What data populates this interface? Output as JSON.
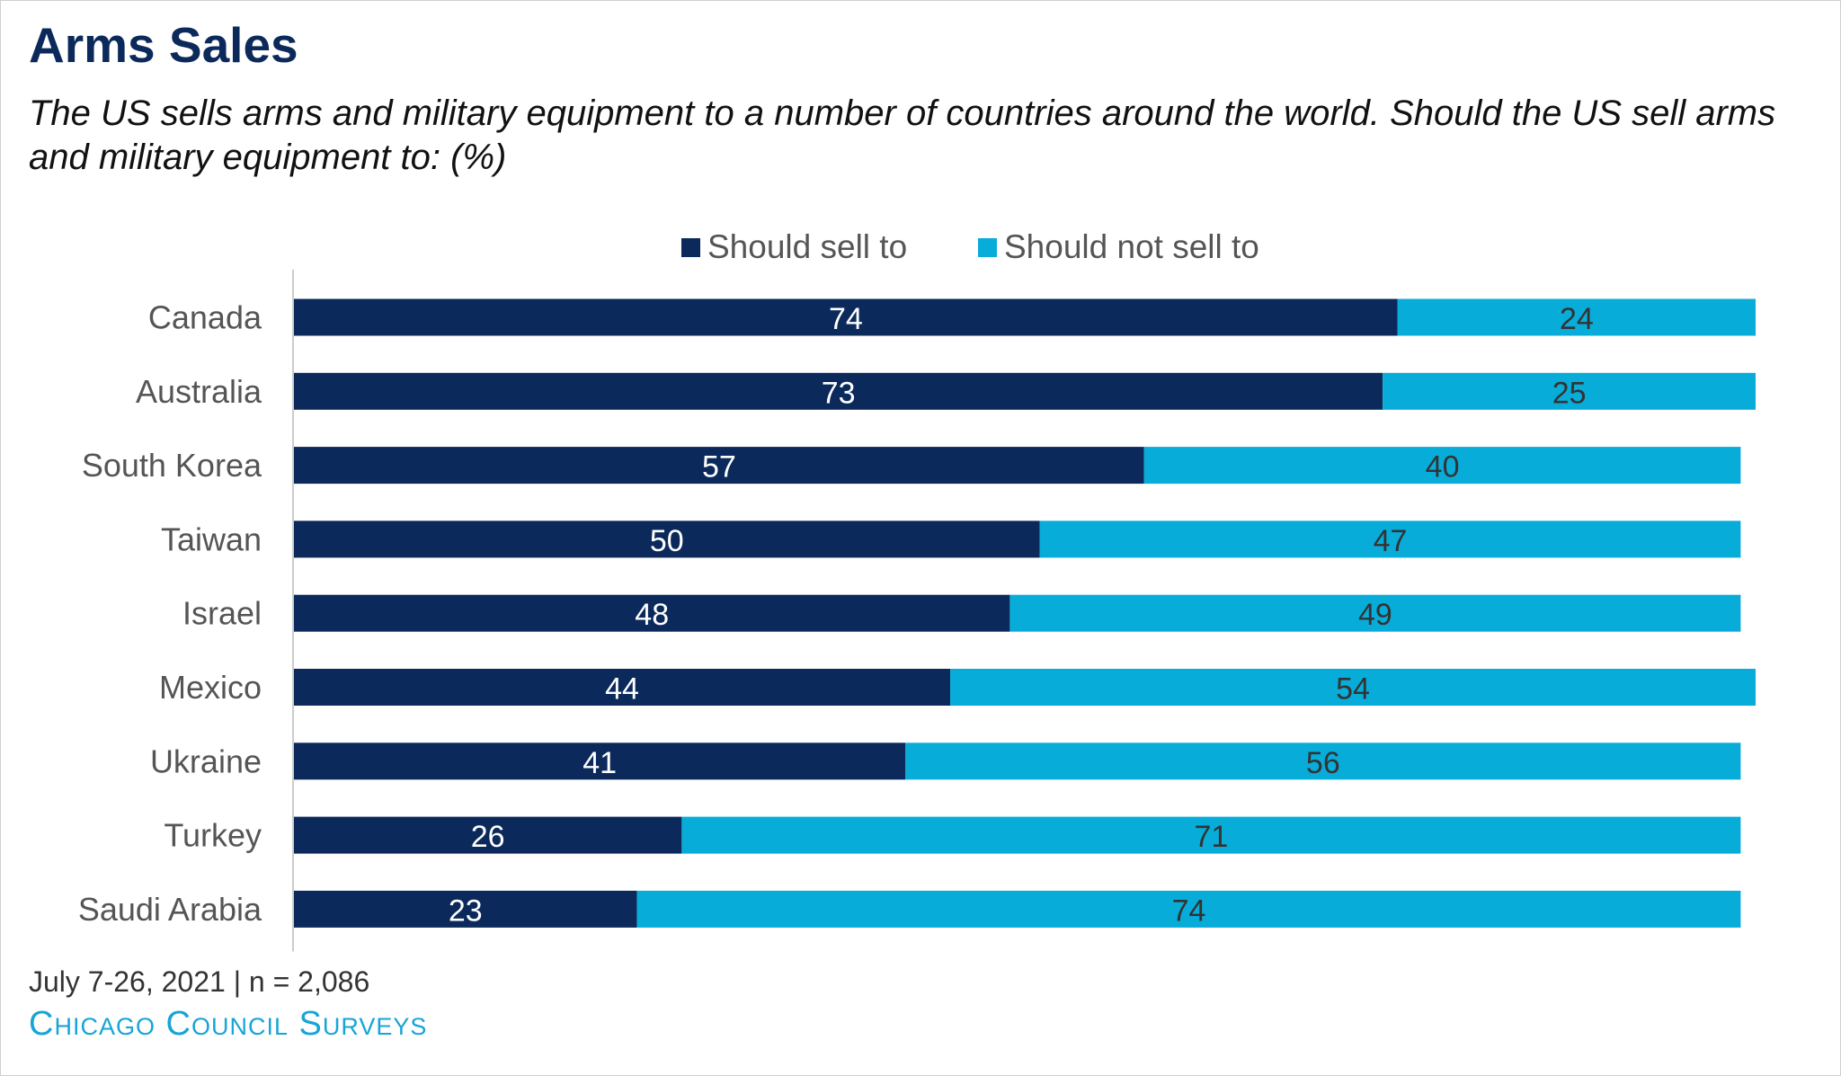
{
  "title": "Arms Sales",
  "subtitle": "The US sells arms and military equipment to a number of countries around the world. Should the US sell arms and military equipment to: (%)",
  "footer": {
    "note": "July 7-26, 2021 | n = 2,086",
    "brand": "Chicago Council Surveys"
  },
  "colors": {
    "sell": "#0b2a5b",
    "not_sell": "#08acd9"
  },
  "chart_data": {
    "type": "bar",
    "orientation": "horizontal",
    "stacked": true,
    "categories": [
      "Canada",
      "Australia",
      "South Korea",
      "Taiwan",
      "Israel",
      "Mexico",
      "Ukraine",
      "Turkey",
      "Saudi Arabia"
    ],
    "series": [
      {
        "name": "Should sell to",
        "values": [
          74,
          73,
          57,
          50,
          48,
          44,
          41,
          26,
          23
        ]
      },
      {
        "name": "Should not sell to",
        "values": [
          24,
          25,
          40,
          47,
          49,
          54,
          56,
          71,
          74
        ]
      }
    ],
    "xlim": [
      0,
      98
    ],
    "legend_position": "top-center",
    "grid": false
  }
}
